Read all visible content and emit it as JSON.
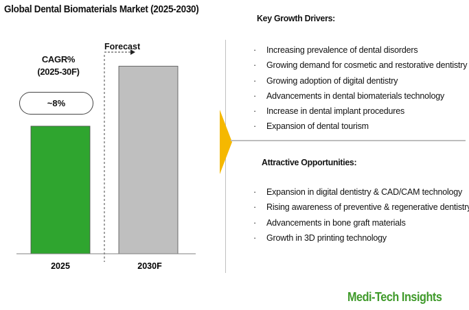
{
  "title": "Global Dental Biomaterials Market (2025-2030)",
  "cagr": {
    "label_line1": "CAGR%",
    "label_line2": "(2025-30F)",
    "value": "~8%"
  },
  "forecast_label": "Forecast",
  "chart_data": {
    "type": "bar",
    "categories": [
      "2025",
      "2030F"
    ],
    "values": [
      1.0,
      1.47
    ],
    "colors": [
      "#2fa52f",
      "#bfbfbf"
    ],
    "title": "Global Dental Biomaterials Market (2025-2030)",
    "xlabel": "",
    "ylabel": "",
    "ylim": [
      0,
      1.65
    ]
  },
  "growth_drivers": {
    "heading": "Key Growth Drivers:",
    "items": [
      "Increasing prevalence of dental disorders",
      "Growing demand for cosmetic and restorative dentistry",
      "Growing adoption of digital dentistry",
      "Advancements in dental biomaterials technology",
      "Increase in dental implant procedures",
      "Expansion of dental tourism"
    ]
  },
  "opportunities": {
    "heading": "Attractive Opportunities:",
    "items": [
      "Expansion in digital dentistry & CAD/CAM technology",
      "Rising awareness of preventive & regenerative dentistry",
      "Advancements in bone graft materials",
      "Growth in 3D printing technology"
    ]
  },
  "bullet": "·",
  "arrow_color": "#f5b800",
  "brand": "Medi-Tech Insights"
}
